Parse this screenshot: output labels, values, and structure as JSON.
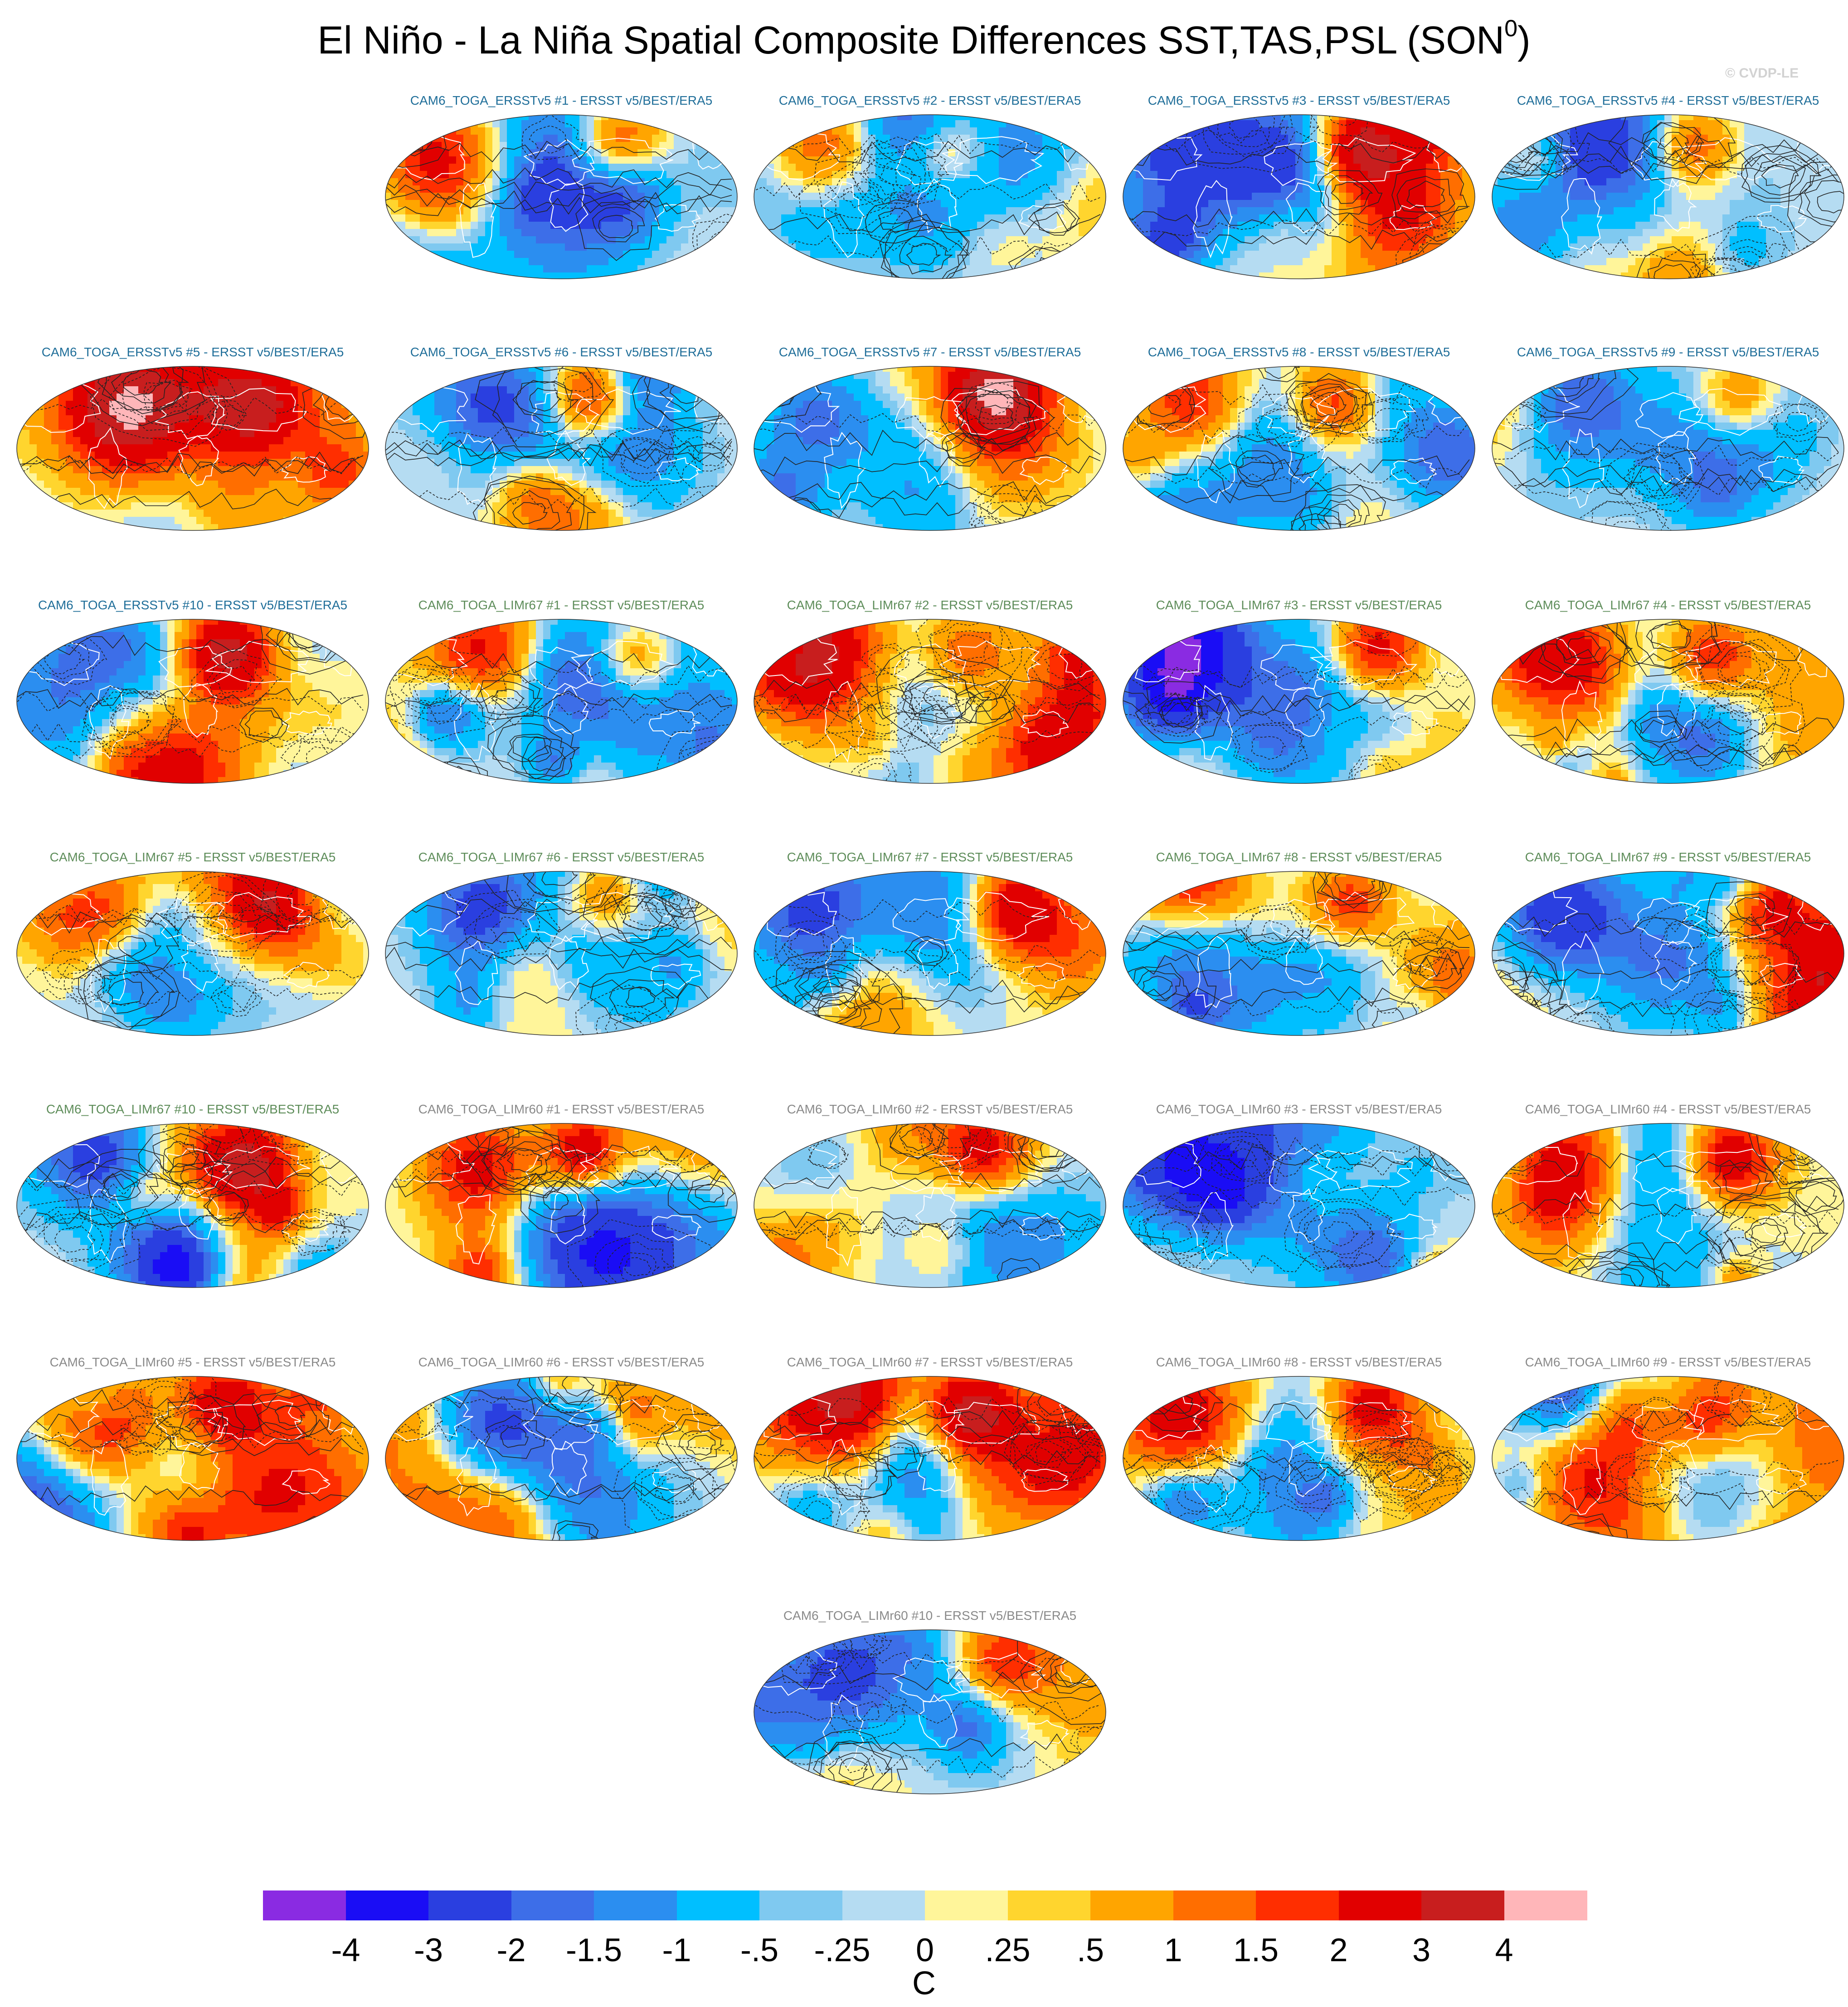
{
  "figure": {
    "title_main": "El Niño - La Niña Spatial Composite Differences SST,TAS,PSL (SON",
    "title_sup": "0",
    "title_close": ")",
    "watermark": "© CVDP-LE"
  },
  "group_colors": {
    "ERSSTv5": "#1f6e99",
    "LIMr67": "#5e8d5a",
    "LIMr60": "#8a8a8a"
  },
  "panels": [
    {
      "title": "CAM6_TOGA_ERSSTv5 #1 - ERSST v5/BEST/ERA5",
      "group": "ERSSTv5"
    },
    {
      "title": "CAM6_TOGA_ERSSTv5 #2 - ERSST v5/BEST/ERA5",
      "group": "ERSSTv5"
    },
    {
      "title": "CAM6_TOGA_ERSSTv5 #3 - ERSST v5/BEST/ERA5",
      "group": "ERSSTv5"
    },
    {
      "title": "CAM6_TOGA_ERSSTv5 #4 - ERSST v5/BEST/ERA5",
      "group": "ERSSTv5"
    },
    {
      "title": "CAM6_TOGA_ERSSTv5 #5 - ERSST v5/BEST/ERA5",
      "group": "ERSSTv5"
    },
    {
      "title": "CAM6_TOGA_ERSSTv5 #6 - ERSST v5/BEST/ERA5",
      "group": "ERSSTv5"
    },
    {
      "title": "CAM6_TOGA_ERSSTv5 #7 - ERSST v5/BEST/ERA5",
      "group": "ERSSTv5"
    },
    {
      "title": "CAM6_TOGA_ERSSTv5 #8 - ERSST v5/BEST/ERA5",
      "group": "ERSSTv5"
    },
    {
      "title": "CAM6_TOGA_ERSSTv5 #9 - ERSST v5/BEST/ERA5",
      "group": "ERSSTv5"
    },
    {
      "title": "CAM6_TOGA_ERSSTv5 #10 - ERSST v5/BEST/ERA5",
      "group": "ERSSTv5"
    },
    {
      "title": "CAM6_TOGA_LIMr67 #1 - ERSST v5/BEST/ERA5",
      "group": "LIMr67"
    },
    {
      "title": "CAM6_TOGA_LIMr67 #2 - ERSST v5/BEST/ERA5",
      "group": "LIMr67"
    },
    {
      "title": "CAM6_TOGA_LIMr67 #3 - ERSST v5/BEST/ERA5",
      "group": "LIMr67"
    },
    {
      "title": "CAM6_TOGA_LIMr67 #4 - ERSST v5/BEST/ERA5",
      "group": "LIMr67"
    },
    {
      "title": "CAM6_TOGA_LIMr67 #5 - ERSST v5/BEST/ERA5",
      "group": "LIMr67"
    },
    {
      "title": "CAM6_TOGA_LIMr67 #6 - ERSST v5/BEST/ERA5",
      "group": "LIMr67"
    },
    {
      "title": "CAM6_TOGA_LIMr67 #7 - ERSST v5/BEST/ERA5",
      "group": "LIMr67"
    },
    {
      "title": "CAM6_TOGA_LIMr67 #8 - ERSST v5/BEST/ERA5",
      "group": "LIMr67"
    },
    {
      "title": "CAM6_TOGA_LIMr67 #9 - ERSST v5/BEST/ERA5",
      "group": "LIMr67"
    },
    {
      "title": "CAM6_TOGA_LIMr67 #10 - ERSST v5/BEST/ERA5",
      "group": "LIMr67"
    },
    {
      "title": "CAM6_TOGA_LIMr60 #1 - ERSST v5/BEST/ERA5",
      "group": "LIMr60"
    },
    {
      "title": "CAM6_TOGA_LIMr60 #2 - ERSST v5/BEST/ERA5",
      "group": "LIMr60"
    },
    {
      "title": "CAM6_TOGA_LIMr60 #3 - ERSST v5/BEST/ERA5",
      "group": "LIMr60"
    },
    {
      "title": "CAM6_TOGA_LIMr60 #4 - ERSST v5/BEST/ERA5",
      "group": "LIMr60"
    },
    {
      "title": "CAM6_TOGA_LIMr60 #5 - ERSST v5/BEST/ERA5",
      "group": "LIMr60"
    },
    {
      "title": "CAM6_TOGA_LIMr60 #6 - ERSST v5/BEST/ERA5",
      "group": "LIMr60"
    },
    {
      "title": "CAM6_TOGA_LIMr60 #7 - ERSST v5/BEST/ERA5",
      "group": "LIMr60"
    },
    {
      "title": "CAM6_TOGA_LIMr60 #8 - ERSST v5/BEST/ERA5",
      "group": "LIMr60"
    },
    {
      "title": "CAM6_TOGA_LIMr60 #9 - ERSST v5/BEST/ERA5",
      "group": "LIMr60"
    },
    {
      "title": "CAM6_TOGA_LIMr60 #10 - ERSST v5/BEST/ERA5",
      "group": "LIMr60"
    }
  ],
  "chart_data": {
    "type": "heatmap",
    "projection": "Robinson (global)",
    "variables": [
      "SST",
      "TAS",
      "PSL"
    ],
    "season": "SON0",
    "shaded": "SST / TAS composite difference",
    "contours": "PSL composite difference (solid positive, dashed negative)",
    "colorbar": {
      "units": "C",
      "tick_labels": [
        "-4",
        "-3",
        "-2",
        "-1.5",
        "-1",
        "-.5",
        "-.25",
        "0",
        ".25",
        ".5",
        "1",
        "1.5",
        "2",
        "3",
        "4"
      ],
      "levels": [
        -4,
        -3,
        -2,
        -1.5,
        -1,
        -0.5,
        -0.25,
        0,
        0.25,
        0.5,
        1,
        1.5,
        2,
        3,
        4
      ],
      "colors": [
        "#8a2be2",
        "#1a0df5",
        "#2a3fe0",
        "#3d6ee8",
        "#2b8ef0",
        "#00bfff",
        "#7fc9f0",
        "#b5dcf2",
        "#fff59a",
        "#ffd52e",
        "#ffa500",
        "#ff6e00",
        "#ff2e00",
        "#e10000",
        "#c81e1e",
        "#ffb6b9"
      ]
    },
    "panel_count": 30
  }
}
